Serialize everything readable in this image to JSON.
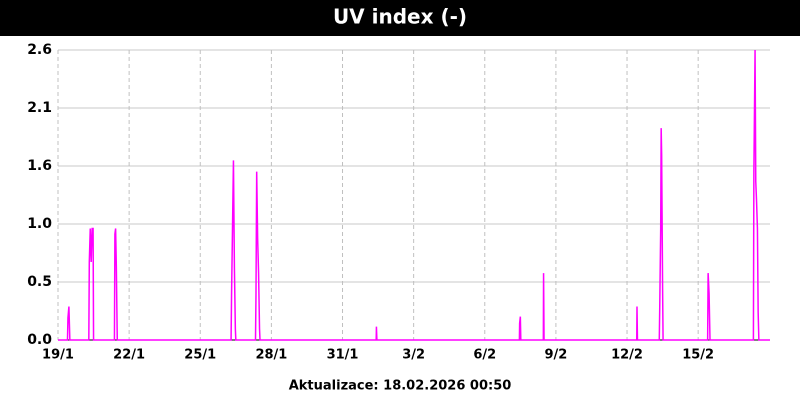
{
  "chart_data": {
    "type": "line",
    "title": "UV index (-)",
    "footer": "Aktualizace: 18.02.2026 00:50",
    "x": [
      19,
      19.4,
      19.42,
      19.46,
      19.5,
      20.3,
      20.32,
      20.36,
      20.4,
      20.44,
      20.48,
      20.5,
      21.38,
      21.4,
      21.43,
      21.46,
      21.5,
      26.3,
      26.32,
      26.36,
      26.4,
      26.44,
      26.48,
      26.5,
      27.33,
      27.35,
      27.38,
      27.42,
      27.46,
      27.5,
      27.52,
      32.42,
      32.43,
      32.45,
      38.46,
      38.47,
      38.5,
      38.52,
      39.47,
      39.48,
      39.5,
      43.41,
      43.42,
      43.44,
      44.36,
      44.38,
      44.42,
      44.44,
      44.46,
      44.5,
      44.52,
      46.4,
      46.42,
      46.46,
      46.5,
      48.33,
      48.35,
      48.4,
      48.43,
      48.46,
      48.5,
      48.53,
      48.56,
      48.6,
      49.03
    ],
    "values": [
      0,
      0,
      0.2,
      0.3,
      0,
      0,
      0.7,
      1.0,
      0.7,
      1.0,
      1.0,
      0,
      0,
      0.95,
      1.0,
      0.66,
      0,
      0,
      0.4,
      1.0,
      1.61,
      0.65,
      0.1,
      0,
      0,
      0.4,
      1.51,
      0.91,
      0.6,
      0.1,
      0,
      0,
      0.12,
      0,
      0,
      0.15,
      0.21,
      0,
      0,
      0.6,
      0,
      0,
      0.3,
      0,
      0,
      0.3,
      1.0,
      1.9,
      1.66,
      0.46,
      0,
      0,
      0.6,
      0.42,
      0,
      0,
      1.51,
      2.6,
      1.42,
      1.26,
      1.0,
      0.25,
      0,
      0,
      0
    ],
    "color": "#ff00ff",
    "xlim": [
      19,
      49.03
    ],
    "xticks": [
      {
        "value": 19,
        "label": "19/1"
      },
      {
        "value": 22,
        "label": "22/1"
      },
      {
        "value": 25,
        "label": "25/1"
      },
      {
        "value": 28,
        "label": "28/1"
      },
      {
        "value": 31,
        "label": "31/1"
      },
      {
        "value": 34,
        "label": "3/2"
      },
      {
        "value": 37,
        "label": "6/2"
      },
      {
        "value": 40,
        "label": "9/2"
      },
      {
        "value": 43,
        "label": "12/2"
      },
      {
        "value": 46,
        "label": "15/2"
      }
    ],
    "ylim": [
      0,
      2.6
    ],
    "yticks": [
      {
        "value": 0,
        "label": "0.0"
      },
      {
        "value": 0.52,
        "label": "0.5"
      },
      {
        "value": 1.04,
        "label": "1.0"
      },
      {
        "value": 1.56,
        "label": "1.6"
      },
      {
        "value": 2.08,
        "label": "2.1"
      },
      2.6
    ],
    "grid": true
  }
}
